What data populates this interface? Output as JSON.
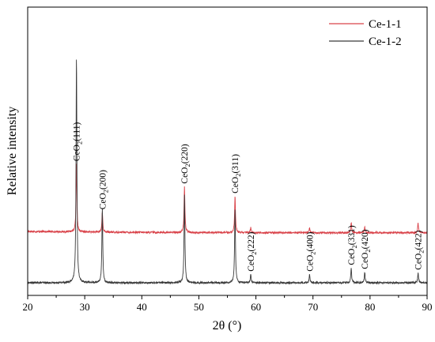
{
  "chart_data": {
    "type": "line",
    "xlabel": "2θ (°)",
    "ylabel": "Relative intensity",
    "xlim": [
      20,
      90
    ],
    "xticks": [
      20,
      30,
      40,
      50,
      60,
      70,
      80,
      90
    ],
    "y_ticks_shown": false,
    "grid": false,
    "legend_position": "top-right",
    "series": [
      {
        "name": "Ce-1-1",
        "color": "#d9434a",
        "baseline": 0.62,
        "peaks": [
          {
            "x": 28.55,
            "height": 0.85
          },
          {
            "x": 33.08,
            "height": 0.25
          },
          {
            "x": 47.48,
            "height": 0.57
          },
          {
            "x": 56.34,
            "height": 0.45
          },
          {
            "x": 59.09,
            "height": 0.06
          },
          {
            "x": 69.4,
            "height": 0.06
          },
          {
            "x": 76.7,
            "height": 0.13
          },
          {
            "x": 79.07,
            "height": 0.07
          },
          {
            "x": 88.42,
            "height": 0.12
          }
        ]
      },
      {
        "name": "Ce-1-2",
        "color": "#3a3a3a",
        "baseline": 0.0,
        "peaks": [
          {
            "x": 28.55,
            "height": 2.8
          },
          {
            "x": 33.08,
            "height": 0.92
          },
          {
            "x": 47.48,
            "height": 1.1
          },
          {
            "x": 56.34,
            "height": 0.92
          },
          {
            "x": 59.09,
            "height": 0.1
          },
          {
            "x": 69.4,
            "height": 0.1
          },
          {
            "x": 76.7,
            "height": 0.18
          },
          {
            "x": 79.07,
            "height": 0.13
          },
          {
            "x": 88.42,
            "height": 0.12
          }
        ]
      }
    ],
    "annotations": [
      {
        "text": "CeO2(111)",
        "x": 28.55,
        "series": "Ce-1-1"
      },
      {
        "text": "CeO2(200)",
        "x": 33.08,
        "series": "Ce-1-1"
      },
      {
        "text": "CeO2(220)",
        "x": 47.48,
        "series": "Ce-1-1"
      },
      {
        "text": "CeO2(311)",
        "x": 56.34,
        "series": "Ce-1-1"
      },
      {
        "text": "CeO2(222)",
        "x": 59.09,
        "series": "Ce-1-2"
      },
      {
        "text": "CeO2(400)",
        "x": 69.4,
        "series": "Ce-1-2"
      },
      {
        "text": "CeO2(331)",
        "x": 76.7,
        "series": "Ce-1-2"
      },
      {
        "text": "CeO2(420)",
        "x": 79.07,
        "series": "Ce-1-2"
      },
      {
        "text": "CeO2(422)",
        "x": 88.42,
        "series": "Ce-1-2"
      }
    ]
  }
}
